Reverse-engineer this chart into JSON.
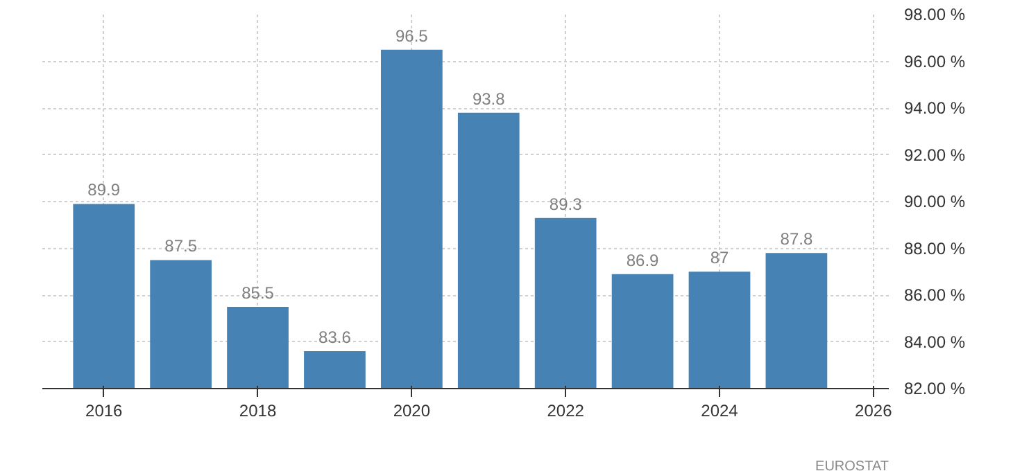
{
  "chart_data": {
    "type": "bar",
    "x": [
      2016,
      2017,
      2018,
      2019,
      2020,
      2021,
      2022,
      2023,
      2024,
      2025
    ],
    "values": [
      89.9,
      87.5,
      85.5,
      83.6,
      96.5,
      93.8,
      89.3,
      86.9,
      87,
      87.8
    ],
    "color": "#4682b4",
    "data_labels": true,
    "xlim": [
      2015.2,
      2026.2
    ],
    "xticks": [
      2016,
      2018,
      2020,
      2022,
      2024,
      2026
    ],
    "ylim": [
      82,
      98
    ],
    "yticks": [
      {
        "value": 82,
        "label": "82.00 %"
      },
      {
        "value": 84,
        "label": "84.00 %"
      },
      {
        "value": 86,
        "label": "86.00 %"
      },
      {
        "value": 88,
        "label": "88.00 %"
      },
      {
        "value": 90,
        "label": "90.00 %"
      },
      {
        "value": 92,
        "label": "92.00 %"
      },
      {
        "value": 94,
        "label": "94.00 %"
      },
      {
        "value": 96,
        "label": "96.00 %"
      },
      {
        "value": 98,
        "label": "98.00 %"
      }
    ],
    "grid": true,
    "annotations": [
      "EUROSTAT"
    ]
  }
}
